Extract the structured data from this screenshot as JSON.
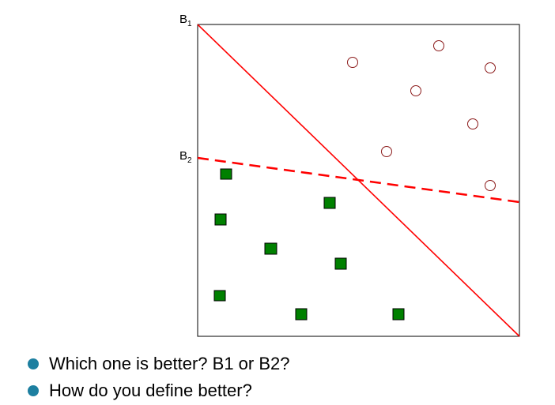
{
  "diagram": {
    "boundary_b1": {
      "name": "B",
      "subscript": "1"
    },
    "boundary_b2": {
      "name": "B",
      "subscript": "2"
    },
    "line_color": "#ff0000",
    "circle_color": "#8b1a1a",
    "square_color": "#008000",
    "circle_class_count": 7,
    "square_class_count": 8
  },
  "bullets": [
    {
      "text": "Which one is better? B1 or B2?",
      "icon": "bullet-dot-icon",
      "color": "#1d7fa0"
    },
    {
      "text": "How do you define better?",
      "icon": "bullet-dot-icon",
      "color": "#1d7fa0"
    }
  ]
}
